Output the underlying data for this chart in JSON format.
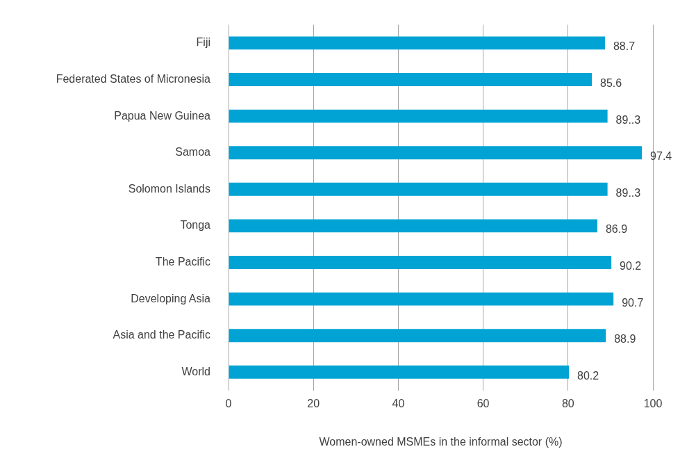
{
  "chart_data": {
    "type": "bar",
    "orientation": "horizontal",
    "xlabel": "Women-owned MSMEs in the informal sector (%)",
    "categories": [
      "Fiji",
      "Federated States of Micronesia",
      "Papua New Guinea",
      "Samoa",
      "Solomon Islands",
      "Tonga",
      "The Pacific",
      "Developing Asia",
      "Asia and the Pacific",
      "World"
    ],
    "values": [
      88.7,
      85.6,
      89.3,
      97.4,
      89.3,
      86.9,
      90.2,
      90.7,
      88.9,
      80.2
    ],
    "value_labels": [
      "88.7",
      "85.6",
      "89..3",
      "97.4",
      "89..3",
      "86.9",
      "90.2",
      "90.7",
      "88.9",
      "80.2"
    ],
    "color": "#00a3d4",
    "xlim": [
      0,
      100
    ],
    "xticks": [
      0,
      20,
      40,
      60,
      80,
      100
    ],
    "grid": "x",
    "legend": false
  }
}
